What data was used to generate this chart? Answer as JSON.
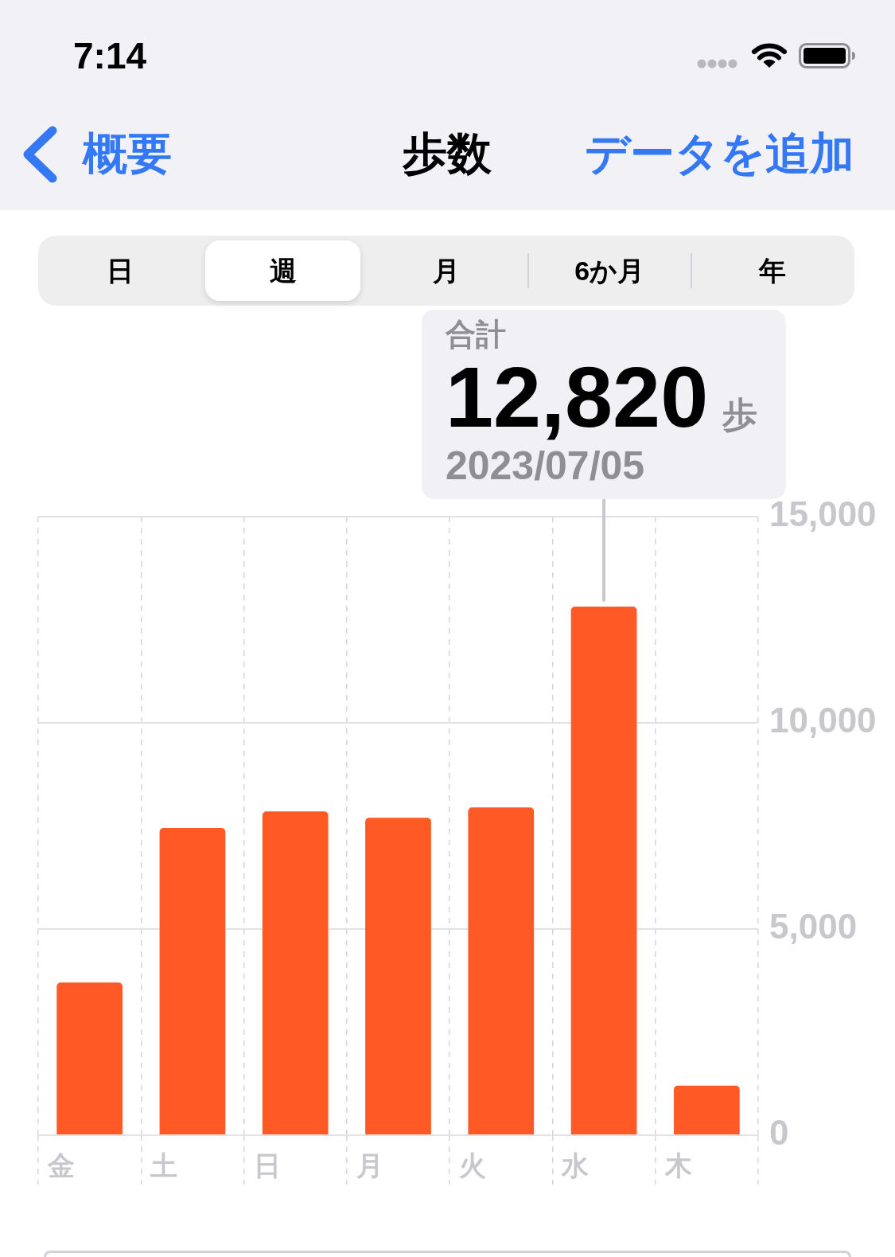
{
  "chart_data": {
    "type": "bar",
    "title": "歩数",
    "categories": [
      "金",
      "土",
      "日",
      "月",
      "火",
      "水",
      "木"
    ],
    "values": [
      3700,
      7450,
      7850,
      7700,
      7950,
      12820,
      1200
    ],
    "color": "#ff5a26",
    "ylim": [
      0,
      15000
    ],
    "yticks": [
      0,
      {
        "value": 5000,
        "label": "5,000"
      },
      {
        "value": 10000,
        "label": "10,000"
      },
      {
        "value": 15000,
        "label": "15,000"
      }
    ],
    "grid": true,
    "annotations": [
      "7:14",
      "概要",
      "データを追加",
      "日",
      "週",
      "月",
      "6か月",
      "年",
      "合計",
      {
        "text": "12,820",
        "x": "水",
        "y": 12820
      },
      "歩",
      "2023/07/05"
    ]
  }
}
